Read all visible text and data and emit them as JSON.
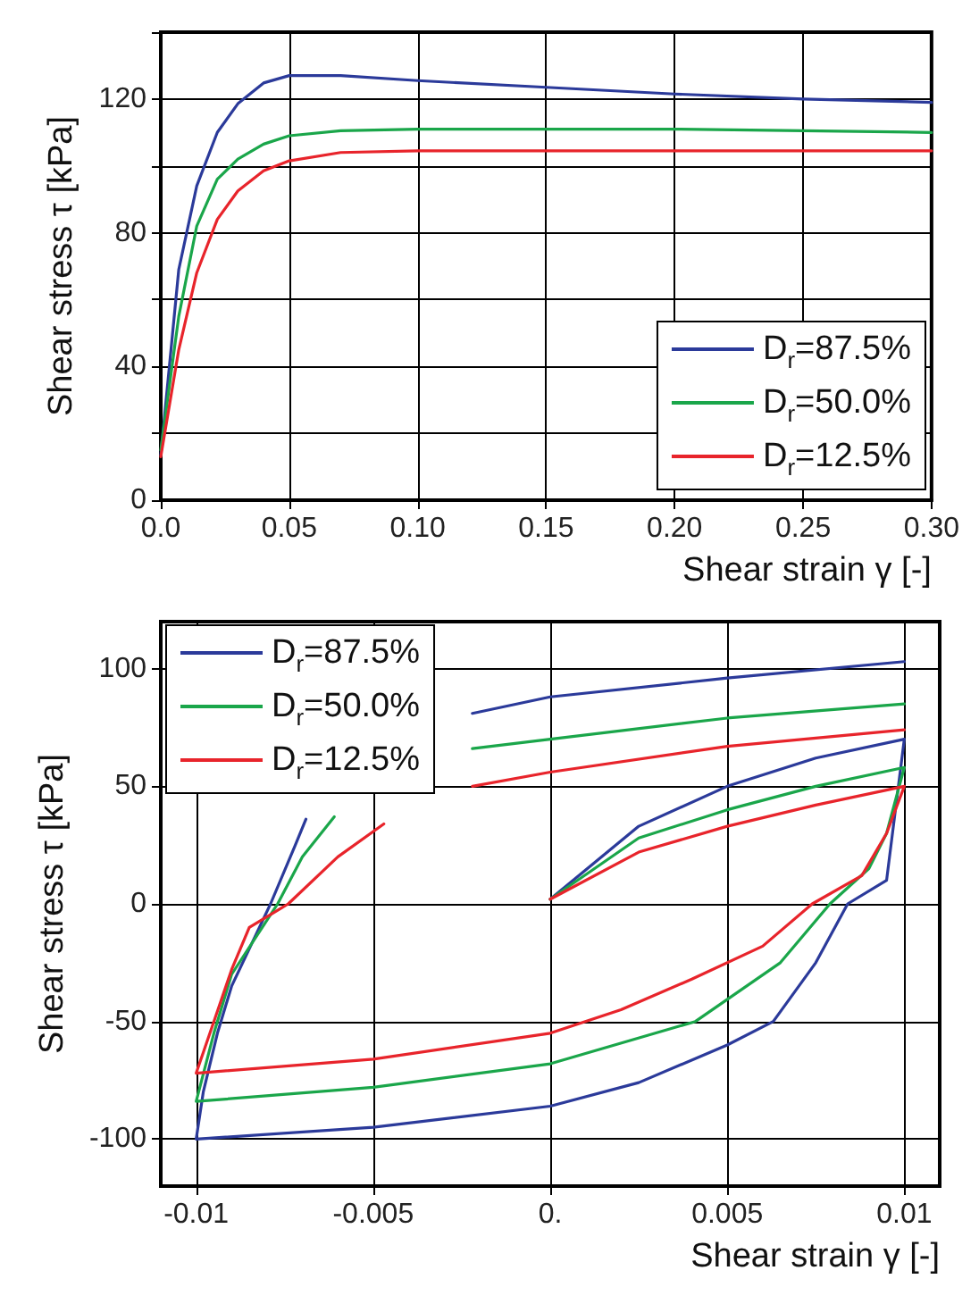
{
  "chart_data": [
    {
      "type": "line",
      "xlabel": "Shear strain γ [-]",
      "ylabel": "Shear stress τ [kPa]",
      "xlim": [
        0,
        0.3
      ],
      "ylim": [
        0,
        140
      ],
      "xticks": [
        {
          "value": 0,
          "label": "0.0"
        },
        0.05,
        {
          "value": 0.1,
          "label": "0.10"
        },
        0.15,
        {
          "value": 0.2,
          "label": "0.20"
        },
        0.25,
        {
          "value": 0.3,
          "label": "0.30"
        }
      ],
      "yticks": [
        0,
        {
          "value": 20,
          "label": null
        },
        40,
        {
          "value": 60,
          "label": null
        },
        80,
        {
          "value": 100,
          "label": null
        },
        120,
        {
          "value": 140,
          "label": null
        }
      ],
      "grid": true,
      "legend": "bottom right",
      "marker": "none",
      "line_style": "solid",
      "x": [
        0,
        0.007,
        0.014,
        0.022,
        0.03,
        0.04,
        0.05,
        0.07,
        0.1,
        0.15,
        0.2,
        0.25,
        0.3
      ],
      "series": [
        {
          "name": "D$_{r}$=87.5%",
          "color": "#2b3a9a",
          "values": [
            13.5,
            69,
            94,
            110,
            118.6,
            124.8,
            127,
            127,
            125.5,
            123.5,
            121.5,
            120,
            119
          ]
        },
        {
          "name": "D$_{r}$=50.0%",
          "color": "#1aa64a",
          "values": [
            15,
            55,
            82,
            96,
            102,
            106.5,
            109,
            110.5,
            111,
            111,
            111,
            110.5,
            110
          ]
        },
        {
          "name": "D$_{r}$=12.5%",
          "color": "#e8242b",
          "values": [
            13,
            45,
            68,
            84,
            92.5,
            98.5,
            101.5,
            104,
            104.5,
            104.5,
            104.5,
            104.5,
            104.5
          ]
        }
      ]
    },
    {
      "type": "line",
      "xlabel": "Shear strain γ [-]",
      "ylabel": "Shear stress τ [kPa]",
      "xlim": [
        -0.011,
        0.011
      ],
      "ylim": [
        -120,
        120
      ],
      "xticks": [
        -0.01,
        -0.005,
        {
          "value": 0,
          "label": "0."
        },
        0.005,
        0.01
      ],
      "yticks": [
        -100,
        -50,
        0,
        50,
        100
      ],
      "grid": true,
      "legend": "top left",
      "marker": "none",
      "line_style": "solid",
      "series": [
        {
          "name": "D$_{r}$=87.5%",
          "color": "#2b3a9a",
          "x": [
            0,
            0.0025,
            0.005,
            0.0075,
            0.01,
            0.0095,
            0.0084,
            0.0075,
            0.0063,
            0.005,
            0.0025,
            0,
            -0.005,
            -0.01,
            -0.0098,
            -0.0094,
            -0.009,
            -0.0079,
            -0.0072,
            -0.0069,
            -0.005,
            -0.0022,
            0,
            0.005,
            0.01
          ],
          "values": [
            2,
            33,
            50,
            62,
            70,
            10,
            0,
            -25,
            -50,
            -60,
            -76,
            -86,
            -95,
            -100,
            -80,
            -55,
            -35,
            0,
            25,
            36,
            null,
            81,
            88,
            96,
            103
          ]
        },
        {
          "name": "D$_{r}$=50.0%",
          "color": "#1aa64a",
          "x": [
            0,
            0.0025,
            0.005,
            0.0075,
            0.01,
            0.0095,
            0.009,
            0.0079,
            0.0065,
            0.0041,
            0,
            -0.005,
            -0.01,
            -0.0095,
            -0.009,
            -0.0077,
            -0.007,
            -0.0061,
            -0.004,
            -0.0022,
            0,
            0.005,
            0.01
          ],
          "values": [
            2,
            28,
            40,
            50,
            58,
            30,
            15,
            0,
            -25,
            -50,
            -68,
            -78,
            -84,
            -55,
            -30,
            0,
            20,
            37,
            null,
            66,
            70,
            79,
            85
          ]
        },
        {
          "name": "D$_{r}$=12.5%",
          "color": "#e8242b",
          "x": [
            0,
            0.0025,
            0.005,
            0.0075,
            0.01,
            0.0095,
            0.0088,
            0.0074,
            0.006,
            0.004,
            0.002,
            0,
            -0.005,
            -0.01,
            -0.0095,
            -0.009,
            -0.0085,
            -0.0074,
            -0.006,
            -0.0047,
            -0.0035,
            -0.0022,
            0,
            0.005,
            0.01
          ],
          "values": [
            2,
            22,
            33,
            42,
            50,
            30,
            12,
            0,
            -18,
            -32,
            -45,
            -55,
            -66,
            -72,
            -50,
            -28,
            -10,
            0,
            20,
            34,
            null,
            50,
            56,
            67,
            74
          ]
        }
      ]
    }
  ]
}
